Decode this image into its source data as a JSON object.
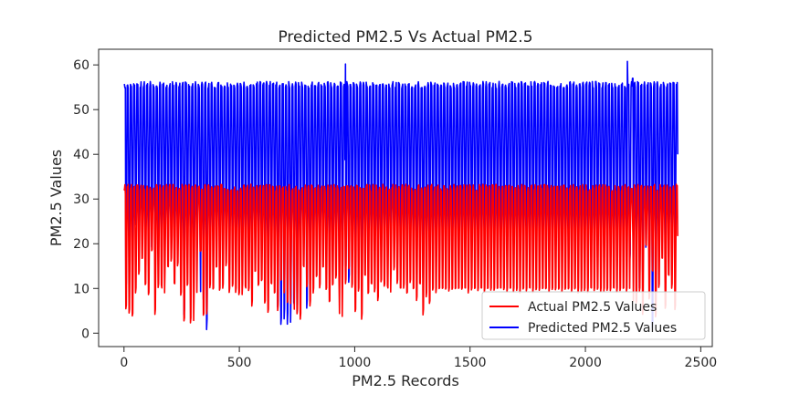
{
  "chart_data": {
    "type": "line",
    "title": "Predicted PM2.5  Vs Actual PM2.5",
    "xlabel": "PM2.5 Records",
    "ylabel": "PM2.5 Values",
    "xlim": [
      -110,
      2550
    ],
    "ylim": [
      -3,
      63.5
    ],
    "xticks": [
      0,
      500,
      1000,
      1500,
      2000,
      2500
    ],
    "yticks": [
      0,
      10,
      20,
      30,
      40,
      50,
      60
    ],
    "legend_position": "lower-right",
    "grid": false,
    "record_count": 2400,
    "series": [
      {
        "name": "Actual PM2.5 Values",
        "color": "#ff0000",
        "cycle_length": 14,
        "upper_envelope_approx": 32.5,
        "lower_envelope_approx": 19.5,
        "troughs": [
          [
            0,
            29
          ],
          [
            12,
            5
          ],
          [
            24,
            4
          ],
          [
            38,
            3
          ],
          [
            52,
            9
          ],
          [
            66,
            13
          ],
          [
            80,
            16
          ],
          [
            95,
            10
          ],
          [
            110,
            8
          ],
          [
            125,
            18
          ],
          [
            140,
            4
          ],
          [
            155,
            10
          ],
          [
            170,
            9
          ],
          [
            185,
            14
          ],
          [
            200,
            16
          ],
          [
            215,
            10
          ],
          [
            230,
            15
          ],
          [
            245,
            8
          ],
          [
            262,
            2
          ],
          [
            278,
            10
          ],
          [
            295,
            2
          ],
          [
            310,
            9
          ],
          [
            325,
            18
          ],
          [
            340,
            3
          ],
          [
            355,
            4
          ],
          [
            370,
            10
          ],
          [
            385,
            9
          ],
          [
            400,
            14
          ],
          [
            415,
            9
          ],
          [
            430,
            10
          ],
          [
            445,
            15
          ],
          [
            460,
            9
          ],
          [
            475,
            10
          ],
          [
            490,
            9
          ],
          [
            505,
            8
          ],
          [
            520,
            10
          ],
          [
            535,
            9
          ],
          [
            550,
            6
          ],
          [
            565,
            13
          ],
          [
            580,
            10
          ],
          [
            595,
            11
          ],
          [
            610,
            6
          ],
          [
            625,
            4
          ],
          [
            640,
            10
          ],
          [
            655,
            8
          ],
          [
            670,
            5
          ],
          [
            685,
            11
          ],
          [
            700,
            9
          ],
          [
            715,
            6
          ],
          [
            730,
            12
          ],
          [
            745,
            4
          ],
          [
            760,
            3
          ],
          [
            775,
            14
          ],
          [
            790,
            10
          ],
          [
            805,
            6
          ],
          [
            820,
            9
          ],
          [
            835,
            12
          ],
          [
            850,
            10
          ],
          [
            865,
            14
          ],
          [
            880,
            9
          ],
          [
            895,
            6
          ],
          [
            910,
            10
          ],
          [
            925,
            12
          ],
          [
            940,
            3
          ],
          [
            955,
            11
          ],
          [
            970,
            14
          ],
          [
            985,
            10
          ],
          [
            1000,
            4
          ],
          [
            1015,
            9
          ],
          [
            1030,
            3
          ],
          [
            1045,
            12
          ],
          [
            1060,
            8
          ],
          [
            1075,
            10
          ],
          [
            1090,
            9
          ],
          [
            1105,
            7
          ],
          [
            1120,
            11
          ],
          [
            1135,
            10
          ],
          [
            1150,
            9
          ],
          [
            1165,
            14
          ],
          [
            1180,
            11
          ],
          [
            1195,
            9
          ],
          [
            1210,
            10
          ],
          [
            1225,
            8
          ],
          [
            1240,
            11
          ],
          [
            1255,
            9
          ],
          [
            1270,
            7
          ],
          [
            1285,
            10
          ],
          [
            1300,
            4
          ],
          [
            1315,
            8
          ],
          [
            1330,
            6
          ],
          [
            1345,
            9
          ],
          [
            1360,
            9
          ],
          [
            1375,
            9
          ],
          [
            1390,
            9
          ],
          [
            1405,
            9
          ],
          [
            1420,
            9
          ],
          [
            1435,
            9
          ],
          [
            1450,
            9
          ],
          [
            1465,
            9
          ],
          [
            1480,
            9
          ],
          [
            1495,
            9
          ],
          [
            1510,
            9
          ],
          [
            1525,
            9
          ],
          [
            1540,
            9
          ],
          [
            1555,
            9
          ],
          [
            1570,
            9
          ],
          [
            1585,
            9
          ],
          [
            1600,
            9
          ],
          [
            1615,
            9
          ],
          [
            1630,
            9
          ],
          [
            1645,
            9
          ],
          [
            1660,
            9
          ],
          [
            1675,
            9
          ],
          [
            1690,
            9
          ],
          [
            1705,
            9
          ],
          [
            1720,
            9
          ],
          [
            1735,
            9
          ],
          [
            1750,
            9
          ],
          [
            1765,
            9
          ],
          [
            1780,
            9
          ],
          [
            1795,
            9
          ],
          [
            1810,
            9
          ],
          [
            1825,
            9
          ],
          [
            1840,
            9
          ],
          [
            1855,
            9
          ],
          [
            1870,
            9
          ],
          [
            1885,
            9
          ],
          [
            1900,
            9
          ],
          [
            1915,
            9
          ],
          [
            1930,
            9
          ],
          [
            1945,
            9
          ],
          [
            1960,
            9
          ],
          [
            1975,
            9
          ],
          [
            1990,
            9
          ],
          [
            2005,
            9
          ],
          [
            2020,
            9
          ],
          [
            2035,
            9
          ],
          [
            2050,
            9
          ],
          [
            2065,
            9
          ],
          [
            2080,
            9
          ],
          [
            2095,
            9
          ],
          [
            2110,
            9
          ],
          [
            2125,
            9
          ],
          [
            2140,
            9
          ],
          [
            2155,
            9
          ],
          [
            2170,
            9
          ],
          [
            2185,
            9
          ],
          [
            2200,
            20
          ],
          [
            2215,
            6
          ],
          [
            2230,
            9
          ],
          [
            2245,
            4
          ],
          [
            2260,
            19
          ],
          [
            2275,
            7
          ],
          [
            2290,
            13
          ],
          [
            2305,
            3
          ],
          [
            2320,
            10
          ],
          [
            2335,
            16
          ],
          [
            2350,
            5
          ],
          [
            2365,
            12
          ],
          [
            2380,
            10
          ],
          [
            2395,
            5
          ]
        ],
        "mid_band_peaks_approx": 27.5
      },
      {
        "name": "Predicted PM2.5 Values",
        "color": "#0000ff",
        "cycle_length": 14,
        "upper_envelope_approx": 55.5,
        "notable_peaks": [
          [
            960,
            60.2
          ],
          [
            2182,
            60.8
          ],
          [
            2205,
            57
          ]
        ],
        "troughs": [
          [
            0,
            54
          ],
          [
            12,
            9
          ],
          [
            24,
            12
          ],
          [
            38,
            20
          ],
          [
            52,
            24
          ],
          [
            66,
            20
          ],
          [
            80,
            22
          ],
          [
            95,
            19
          ],
          [
            110,
            20
          ],
          [
            125,
            19
          ],
          [
            140,
            20
          ],
          [
            155,
            19
          ],
          [
            170,
            20
          ],
          [
            185,
            20
          ],
          [
            200,
            19
          ],
          [
            215,
            20
          ],
          [
            230,
            19
          ],
          [
            260,
            3
          ],
          [
            275,
            19
          ],
          [
            290,
            20
          ],
          [
            305,
            13
          ],
          [
            320,
            19
          ],
          [
            340,
            7
          ],
          [
            355,
            0.5
          ],
          [
            370,
            19
          ],
          [
            385,
            20
          ],
          [
            400,
            19
          ],
          [
            415,
            20
          ],
          [
            430,
            19
          ],
          [
            445,
            20
          ],
          [
            460,
            19
          ],
          [
            475,
            20
          ],
          [
            490,
            19
          ],
          [
            505,
            20
          ],
          [
            520,
            19
          ],
          [
            535,
            20
          ],
          [
            550,
            19
          ],
          [
            565,
            20
          ],
          [
            580,
            19
          ],
          [
            595,
            20
          ],
          [
            610,
            19
          ],
          [
            625,
            20
          ],
          [
            640,
            19
          ],
          [
            655,
            20
          ],
          [
            670,
            5
          ],
          [
            685,
            0.8
          ],
          [
            700,
            3
          ],
          [
            715,
            2
          ],
          [
            730,
            6
          ],
          [
            745,
            4
          ],
          [
            760,
            19
          ],
          [
            775,
            20
          ],
          [
            790,
            5
          ],
          [
            805,
            10
          ],
          [
            820,
            19
          ],
          [
            835,
            20
          ],
          [
            850,
            19
          ],
          [
            865,
            20
          ],
          [
            880,
            19
          ],
          [
            895,
            20
          ],
          [
            910,
            19
          ],
          [
            925,
            20
          ],
          [
            940,
            19
          ],
          [
            955,
            13
          ],
          [
            970,
            11
          ],
          [
            985,
            19
          ],
          [
            1000,
            20
          ],
          [
            1015,
            19
          ],
          [
            1030,
            20
          ],
          [
            1045,
            19
          ],
          [
            1060,
            20
          ],
          [
            1075,
            19
          ],
          [
            1090,
            20
          ],
          [
            1105,
            19
          ],
          [
            1120,
            20
          ],
          [
            1135,
            19
          ],
          [
            1150,
            20
          ],
          [
            1165,
            19
          ],
          [
            1180,
            20
          ],
          [
            1195,
            19
          ],
          [
            1210,
            20
          ],
          [
            1225,
            19
          ],
          [
            1240,
            20
          ],
          [
            1255,
            19
          ],
          [
            1270,
            20
          ],
          [
            1285,
            19
          ],
          [
            1300,
            12
          ],
          [
            1315,
            20
          ],
          [
            1330,
            19
          ]
        ],
        "regular_trough_after_1340": 19.5,
        "late_troughs": [
          [
            2180,
            18
          ],
          [
            2195,
            16
          ],
          [
            2215,
            19
          ],
          [
            2230,
            10
          ],
          [
            2250,
            13
          ],
          [
            2265,
            19
          ],
          [
            2280,
            19
          ],
          [
            2296,
            0.3
          ],
          [
            2310,
            12
          ],
          [
            2330,
            19
          ],
          [
            2345,
            19
          ],
          [
            2360,
            19
          ],
          [
            2375,
            14
          ],
          [
            2395,
            16
          ]
        ]
      }
    ]
  }
}
